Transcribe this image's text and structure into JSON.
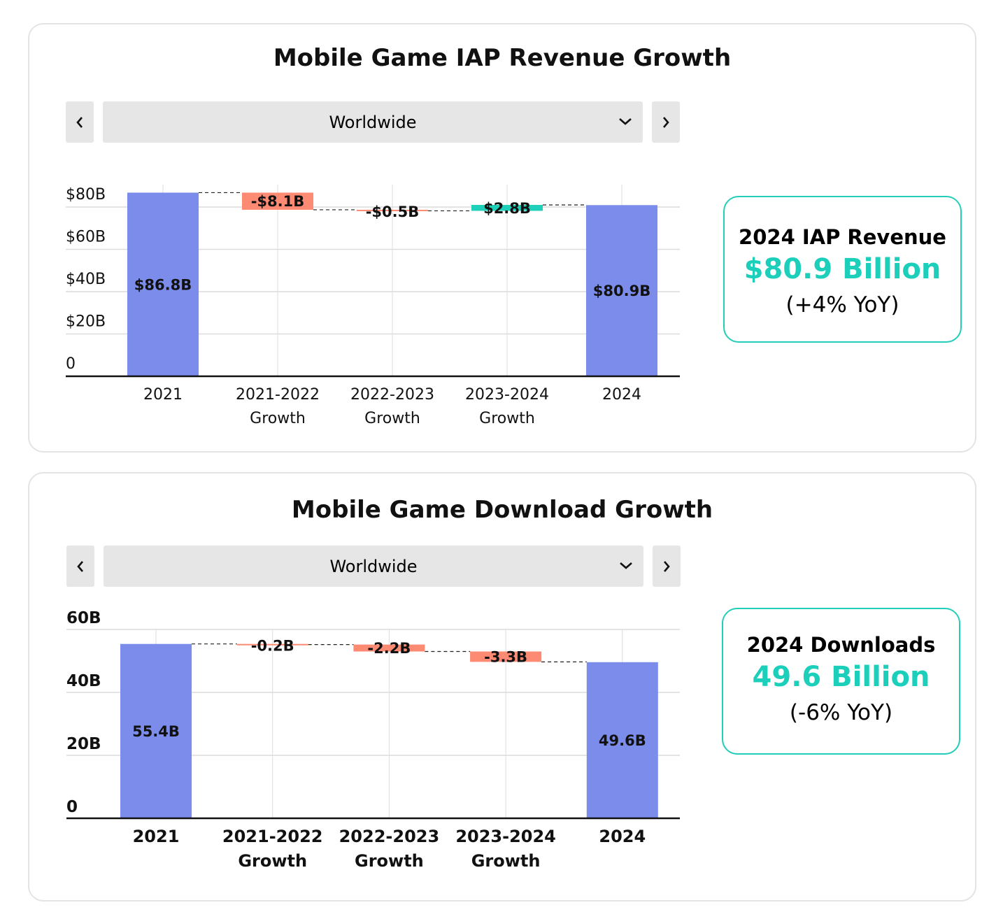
{
  "colors": {
    "total": "#7b8cea",
    "decrease": "#fd8a73",
    "increase": "#1ecfb9",
    "kpi_accent": "#1ccfba"
  },
  "panels": [
    {
      "title": "Mobile Game IAP Revenue Growth",
      "region_select": {
        "value": "Worldwide",
        "prev_icon": "chevron-left-icon",
        "next_icon": "chevron-right-icon",
        "dropdown_icon": "chevron-down-icon"
      },
      "kpi": {
        "label": "2024 IAP Revenue",
        "value": "$80.9 Billion",
        "change": "(+4% YoY)"
      },
      "chart_data": {
        "type": "waterfall",
        "title": "",
        "categories": [
          [
            "2021"
          ],
          [
            "2021-2022",
            "Growth"
          ],
          [
            "2022-2023",
            "Growth"
          ],
          [
            "2023-2024",
            "Growth"
          ],
          [
            "2024"
          ]
        ],
        "kinds": [
          "total",
          "delta",
          "delta",
          "delta",
          "total"
        ],
        "values": [
          86.8,
          -8.1,
          -0.5,
          2.8,
          80.9
        ],
        "data_labels": [
          "$86.8B",
          "-$8.1B",
          "-$0.5B",
          "$2.8B",
          "$80.9B"
        ],
        "yticks": [
          0,
          20,
          40,
          60,
          80
        ],
        "ytick_labels": [
          "0",
          "$20B",
          "$40B",
          "$60B",
          "$80B"
        ],
        "ylim": [
          0,
          88
        ],
        "unit": "B USD",
        "grid": true
      }
    },
    {
      "title": "Mobile Game Download Growth",
      "region_select": {
        "value": "Worldwide",
        "prev_icon": "chevron-left-icon",
        "next_icon": "chevron-right-icon",
        "dropdown_icon": "chevron-down-icon"
      },
      "kpi": {
        "label": "2024 Downloads",
        "value": "49.6 Billion",
        "change": "(-6% YoY)"
      },
      "chart_data": {
        "type": "waterfall",
        "title": "",
        "categories": [
          [
            "2021"
          ],
          [
            "2021-2022",
            "Growth"
          ],
          [
            "2022-2023",
            "Growth"
          ],
          [
            "2023-2024",
            "Growth"
          ],
          [
            "2024"
          ]
        ],
        "kinds": [
          "total",
          "delta",
          "delta",
          "delta",
          "total"
        ],
        "values": [
          55.4,
          -0.2,
          -2.2,
          -3.3,
          49.6
        ],
        "data_labels": [
          "55.4B",
          "-0.2B",
          "-2.2B",
          "-3.3B",
          "49.6B"
        ],
        "yticks": [
          0,
          20,
          40,
          60
        ],
        "ytick_labels": [
          "0",
          "20B",
          "40B",
          "60B"
        ],
        "ylim": [
          0,
          60
        ],
        "unit": "B",
        "grid": true
      }
    }
  ]
}
